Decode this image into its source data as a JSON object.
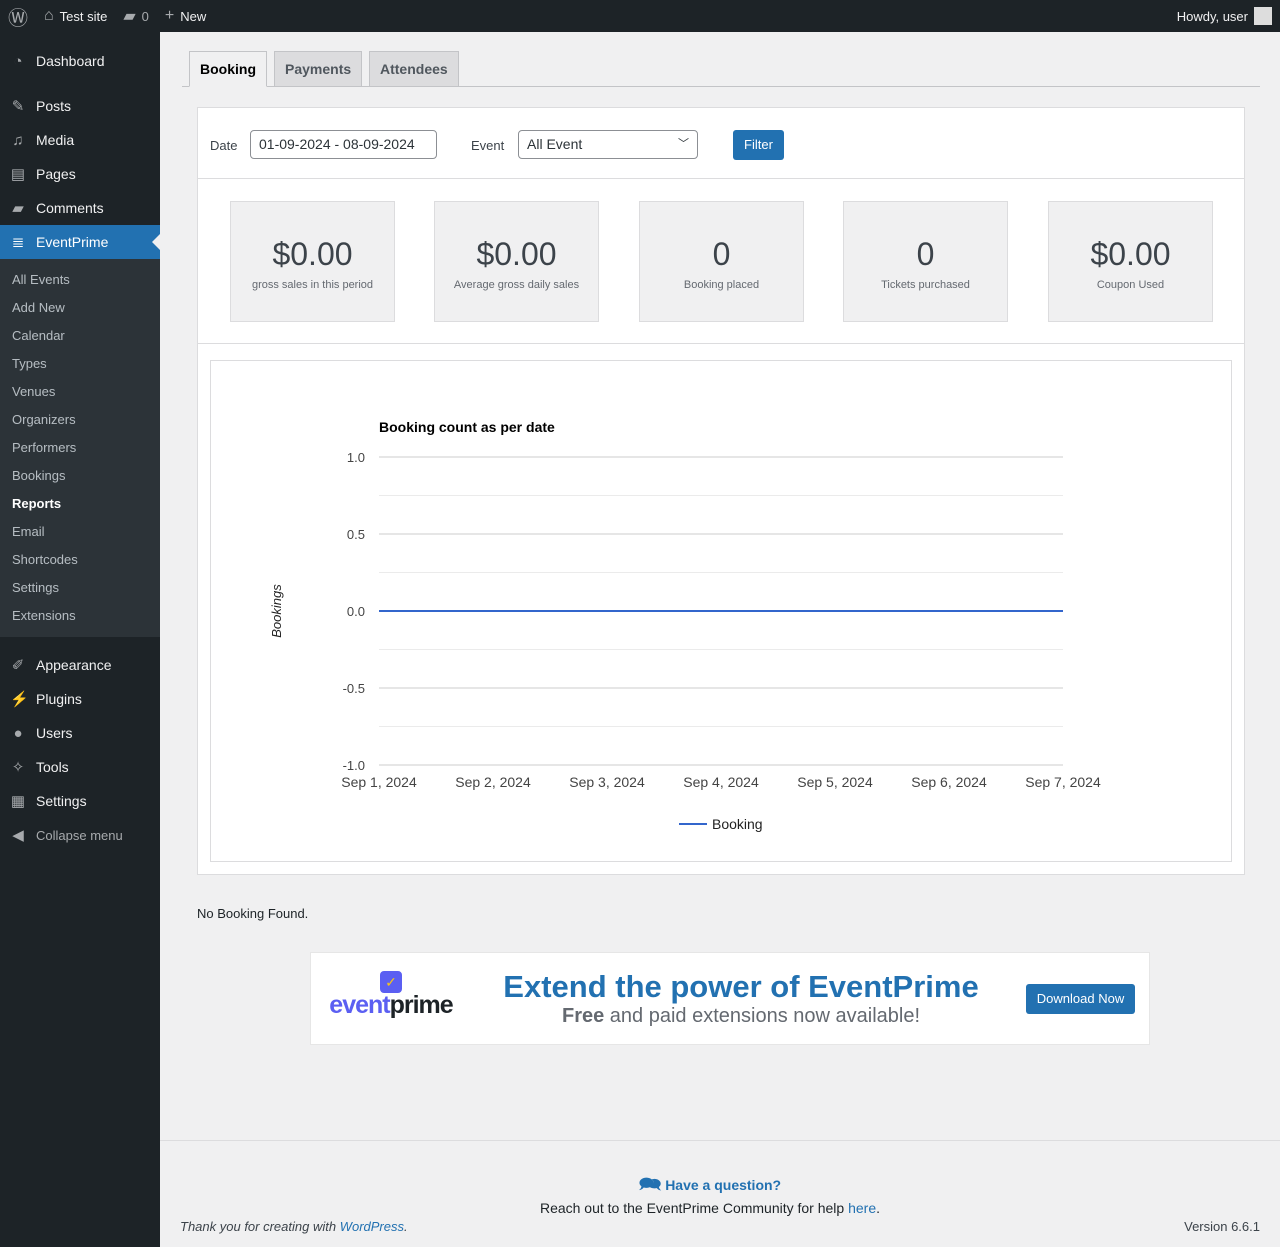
{
  "adminbar": {
    "site": "Test site",
    "comments": "0",
    "new": "New",
    "howdy": "Howdy, user"
  },
  "sidebar": {
    "items": [
      {
        "label": "Dashboard",
        "icon": "dashboard-icon"
      },
      {
        "label": "Posts",
        "icon": "pin-icon"
      },
      {
        "label": "Media",
        "icon": "media-icon"
      },
      {
        "label": "Pages",
        "icon": "pages-icon"
      },
      {
        "label": "Comments",
        "icon": "comment-icon"
      },
      {
        "label": "EventPrime",
        "icon": "tickets-icon"
      }
    ],
    "submenu": [
      "All Events",
      "Add New",
      "Calendar",
      "Types",
      "Venues",
      "Organizers",
      "Performers",
      "Bookings",
      "Reports",
      "Email",
      "Shortcodes",
      "Settings",
      "Extensions"
    ],
    "bottom": [
      {
        "label": "Appearance"
      },
      {
        "label": "Plugins"
      },
      {
        "label": "Users"
      },
      {
        "label": "Tools"
      },
      {
        "label": "Settings"
      }
    ],
    "collapse": "Collapse menu"
  },
  "tabs": [
    "Booking",
    "Payments",
    "Attendees"
  ],
  "filter": {
    "date_label": "Date",
    "date_value": "01-09-2024 - 08-09-2024",
    "event_label": "Event",
    "event_value": "All Event",
    "button": "Filter"
  },
  "cards": [
    {
      "value": "$0.00",
      "label": "gross sales in this period"
    },
    {
      "value": "$0.00",
      "label": "Average gross daily sales"
    },
    {
      "value": "0",
      "label": "Booking placed"
    },
    {
      "value": "0",
      "label": "Tickets purchased"
    },
    {
      "value": "$0.00",
      "label": "Coupon Used"
    }
  ],
  "chart_data": {
    "type": "line",
    "title": "Booking count as per date",
    "xlabel": "",
    "ylabel": "Bookings",
    "categories": [
      "Sep 1, 2024",
      "Sep 2, 2024",
      "Sep 3, 2024",
      "Sep 4, 2024",
      "Sep 5, 2024",
      "Sep 6, 2024",
      "Sep 7, 2024"
    ],
    "series": [
      {
        "name": "Booking",
        "values": [
          0,
          0,
          0,
          0,
          0,
          0,
          0
        ],
        "color": "#3366cc"
      }
    ],
    "ylim": [
      -1,
      1
    ],
    "yticks": [
      "1.0",
      "0.5",
      "0.0",
      "-0.5",
      "-1.0"
    ],
    "grid": true,
    "legend": "bottom"
  },
  "no_booking": "No Booking Found.",
  "banner": {
    "logo": "eventprime",
    "headline": "Extend the power of EventPrime",
    "sub_bold": "Free",
    "sub_rest": " and paid extensions now available!",
    "button": "Download Now"
  },
  "help": {
    "title": "Have a question?",
    "text": "Reach out to the EventPrime Community for help ",
    "link": "here",
    "end": "."
  },
  "footer": {
    "thanks": "Thank you for creating with ",
    "wp": "WordPress",
    "dot": ".",
    "version": "Version 6.6.1"
  }
}
